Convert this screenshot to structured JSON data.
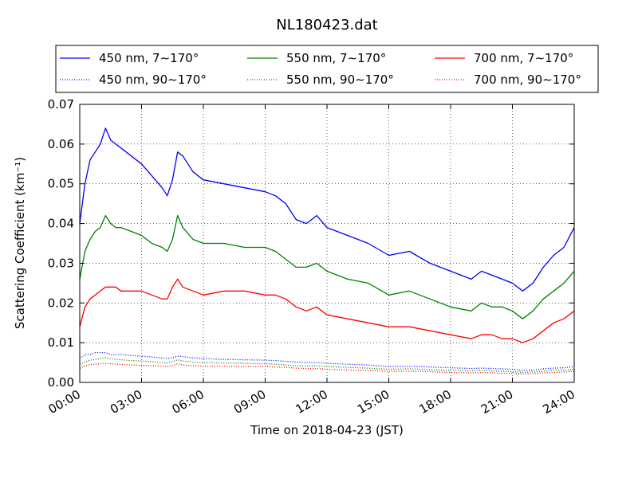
{
  "chart_data": {
    "type": "line",
    "title": "NL180423.dat",
    "xlabel": "Time on 2018-04-23 (JST)",
    "ylabel": "Scattering Coefficient (km⁻¹)",
    "xlim_hours": [
      0,
      24
    ],
    "ylim": [
      0,
      0.07
    ],
    "x_ticks": [
      "00:00",
      "03:00",
      "06:00",
      "09:00",
      "12:00",
      "15:00",
      "18:00",
      "21:00",
      "24:00"
    ],
    "y_ticks": [
      "0.00",
      "0.01",
      "0.02",
      "0.03",
      "0.04",
      "0.05",
      "0.06",
      "0.07"
    ],
    "grid": true,
    "legend_position": "top",
    "x_hours": [
      0,
      0.25,
      0.5,
      0.75,
      1,
      1.25,
      1.5,
      1.75,
      2,
      2.5,
      3,
      3.5,
      4,
      4.25,
      4.5,
      4.75,
      5,
      5.5,
      6,
      7,
      8,
      9,
      9.5,
      10,
      10.5,
      11,
      11.5,
      12,
      13,
      14,
      15,
      16,
      17,
      18,
      19,
      19.5,
      20,
      20.5,
      21,
      21.5,
      22,
      22.5,
      23,
      23.5,
      24
    ],
    "series": [
      {
        "name": "450 nm, 7∼170°",
        "color": "#0000ff",
        "style": "solid",
        "values": [
          0.04,
          0.05,
          0.056,
          0.058,
          0.06,
          0.064,
          0.061,
          0.06,
          0.059,
          0.057,
          0.055,
          0.052,
          0.049,
          0.047,
          0.051,
          0.058,
          0.057,
          0.053,
          0.051,
          0.05,
          0.049,
          0.048,
          0.047,
          0.045,
          0.041,
          0.04,
          0.042,
          0.039,
          0.037,
          0.035,
          0.032,
          0.033,
          0.03,
          0.028,
          0.026,
          0.028,
          0.027,
          0.026,
          0.025,
          0.023,
          0.025,
          0.029,
          0.032,
          0.034,
          0.039
        ]
      },
      {
        "name": "550 nm, 7∼170°",
        "color": "#008000",
        "style": "solid",
        "values": [
          0.026,
          0.033,
          0.036,
          0.038,
          0.039,
          0.042,
          0.04,
          0.039,
          0.039,
          0.038,
          0.037,
          0.035,
          0.034,
          0.033,
          0.036,
          0.042,
          0.039,
          0.036,
          0.035,
          0.035,
          0.034,
          0.034,
          0.033,
          0.031,
          0.029,
          0.029,
          0.03,
          0.028,
          0.026,
          0.025,
          0.022,
          0.023,
          0.021,
          0.019,
          0.018,
          0.02,
          0.019,
          0.019,
          0.018,
          0.016,
          0.018,
          0.021,
          0.023,
          0.025,
          0.028
        ]
      },
      {
        "name": "700 nm, 7∼170°",
        "color": "#ff0000",
        "style": "solid",
        "values": [
          0.014,
          0.019,
          0.021,
          0.022,
          0.023,
          0.024,
          0.024,
          0.024,
          0.023,
          0.023,
          0.023,
          0.022,
          0.021,
          0.021,
          0.024,
          0.026,
          0.024,
          0.023,
          0.022,
          0.023,
          0.023,
          0.022,
          0.022,
          0.021,
          0.019,
          0.018,
          0.019,
          0.017,
          0.016,
          0.015,
          0.014,
          0.014,
          0.013,
          0.012,
          0.011,
          0.012,
          0.012,
          0.011,
          0.011,
          0.01,
          0.011,
          0.013,
          0.015,
          0.016,
          0.018
        ]
      },
      {
        "name": "450 nm, 90∼170°",
        "color": "#0000ff",
        "style": "dotted",
        "values": [
          0.006,
          0.007,
          0.007,
          0.0075,
          0.0075,
          0.0075,
          0.007,
          0.007,
          0.007,
          0.0068,
          0.0066,
          0.0064,
          0.0062,
          0.006,
          0.0062,
          0.0066,
          0.0065,
          0.0062,
          0.006,
          0.0058,
          0.0057,
          0.0056,
          0.0055,
          0.0053,
          0.0051,
          0.005,
          0.005,
          0.0048,
          0.0046,
          0.0044,
          0.004,
          0.0041,
          0.0039,
          0.0037,
          0.0035,
          0.0036,
          0.0035,
          0.0034,
          0.0033,
          0.003,
          0.0031,
          0.0034,
          0.0036,
          0.0037,
          0.004
        ]
      },
      {
        "name": "550 nm, 90∼170°",
        "color": "#008000",
        "style": "dotted",
        "values": [
          0.0045,
          0.0052,
          0.0056,
          0.0058,
          0.006,
          0.0062,
          0.006,
          0.0058,
          0.0057,
          0.0055,
          0.0054,
          0.0052,
          0.005,
          0.0049,
          0.0052,
          0.0057,
          0.0054,
          0.0051,
          0.005,
          0.0049,
          0.0048,
          0.0047,
          0.0046,
          0.0044,
          0.0042,
          0.0041,
          0.0042,
          0.004,
          0.0038,
          0.0036,
          0.0033,
          0.0034,
          0.0032,
          0.003,
          0.0029,
          0.003,
          0.0029,
          0.0028,
          0.0027,
          0.0025,
          0.0026,
          0.0028,
          0.003,
          0.0031,
          0.0033
        ]
      },
      {
        "name": "700 nm, 90∼170°",
        "color": "#ff0000",
        "style": "dotted",
        "values": [
          0.0035,
          0.0042,
          0.0045,
          0.0046,
          0.0047,
          0.0048,
          0.0047,
          0.0046,
          0.0045,
          0.0044,
          0.0043,
          0.0042,
          0.0041,
          0.004,
          0.0043,
          0.0047,
          0.0044,
          0.0042,
          0.0041,
          0.0041,
          0.004,
          0.004,
          0.0039,
          0.0038,
          0.0036,
          0.0035,
          0.0035,
          0.0033,
          0.0031,
          0.003,
          0.0028,
          0.0028,
          0.0027,
          0.0025,
          0.0024,
          0.0025,
          0.0024,
          0.0023,
          0.0023,
          0.0021,
          0.0022,
          0.0024,
          0.0025,
          0.0026,
          0.0028
        ]
      }
    ]
  }
}
